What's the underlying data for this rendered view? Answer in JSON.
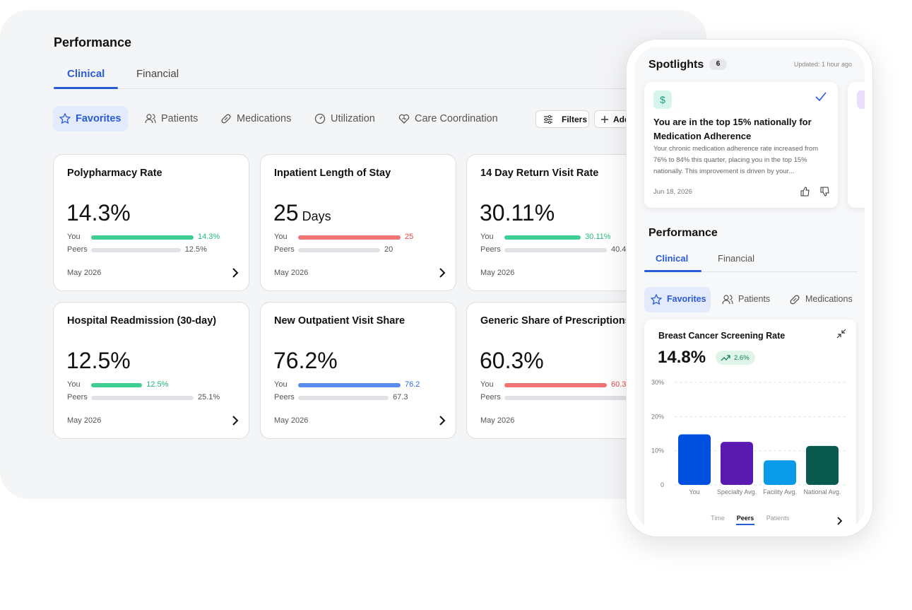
{
  "desktop": {
    "title": "Performance",
    "tabs": [
      "Clinical",
      "Financial"
    ],
    "filters": [
      "Favorites",
      "Patients",
      "Medications",
      "Utilization",
      "Care Coordination"
    ],
    "buttons": [
      "Filters",
      "Add"
    ],
    "cards": [
      {
        "title": "Polypharmacy Rate",
        "value": "14.3%",
        "you": {
          "label": "You",
          "value": 14.3,
          "value_label": "14.3%",
          "color": "#3ccf91",
          "label_color": "#22b87a"
        },
        "peers": {
          "label": "Peers",
          "value": 12.5,
          "value_label": "12.5%"
        },
        "date": "May 2026"
      },
      {
        "title": "Inpatient Length of Stay",
        "value": "25",
        "unit": "Days",
        "you": {
          "label": "You",
          "value": 25,
          "color": "#f07474",
          "label_color": "#e5484d"
        },
        "peers": {
          "label": "Peers",
          "value": 20
        },
        "date": "May 2026"
      },
      {
        "title": "14 Day Return Visit Rate",
        "value": "30.11%",
        "you": {
          "label": "You",
          "value": 30.11,
          "value_label": "30.11%",
          "color": "#3ccf91",
          "label_color": "#22b87a"
        },
        "peers": {
          "label": "Peers",
          "value": 40.4,
          "value_label": "40.4%"
        },
        "date": "May 2026"
      },
      {
        "title": "Hospital Readmission (30-day)",
        "value": "12.5%",
        "you": {
          "label": "You",
          "value": 12.5,
          "value_label": "12.5%",
          "color": "#3ccf91",
          "label_color": "#22b87a"
        },
        "peers": {
          "label": "Peers",
          "value": 25.1,
          "value_label": "25.1%"
        },
        "date": "May 2026"
      },
      {
        "title": "New Outpatient Visit Share",
        "value": "76.2%",
        "you": {
          "label": "You",
          "value": 76.2,
          "color": "#5b8def",
          "label_color": "#2f6fe0"
        },
        "peers": {
          "label": "Peers",
          "value": 67.3
        },
        "date": "May 2026"
      },
      {
        "title": "Generic Share of Prescriptions",
        "value": "60.3%",
        "you": {
          "label": "You",
          "value": 60.3,
          "value_label": "60.3%",
          "color": "#f07474",
          "label_color": "#e5484d"
        },
        "peers": {
          "label": "Peers"
        },
        "date": "May 2026"
      }
    ]
  },
  "phone": {
    "spotlights": {
      "title": "Spotlights",
      "count": "6",
      "updated": "Updated: 1 hour ago",
      "card": {
        "icon": "$",
        "title": "You are in the top 15% nationally for Medication Adherence",
        "body": "Your chronic medication adherence rate increased from 76% to 84% this quarter, placing you in the top 15% nationally. This improvement is driven by your...",
        "date": "Jun 18, 2026"
      }
    },
    "performance": {
      "title": "Performance",
      "tabs": [
        "Clinical",
        "Financial"
      ],
      "filters": [
        "Favorites",
        "Patients",
        "Medications"
      ]
    },
    "views": [
      "Time",
      "Peers",
      "Patients"
    ]
  },
  "chart_data": {
    "type": "bar",
    "title": "Breast Cancer Screening Rate",
    "headline": "14.8%",
    "change": "2.6%",
    "categories": [
      "You",
      "Specialty Avg.",
      "Facility Avg.",
      "National Avg."
    ],
    "values": [
      14.8,
      12.6,
      7.2,
      11.4
    ],
    "colors": [
      "#0050e0",
      "#5a1ab0",
      "#0a9be8",
      "#0b5a4f"
    ],
    "ylim": [
      0,
      30
    ],
    "yticks": [
      0,
      {
        "value": 10,
        "label": "10%"
      },
      {
        "value": 20,
        "label": "20%"
      },
      {
        "value": 30,
        "label": "30%"
      }
    ],
    "grid": true
  }
}
